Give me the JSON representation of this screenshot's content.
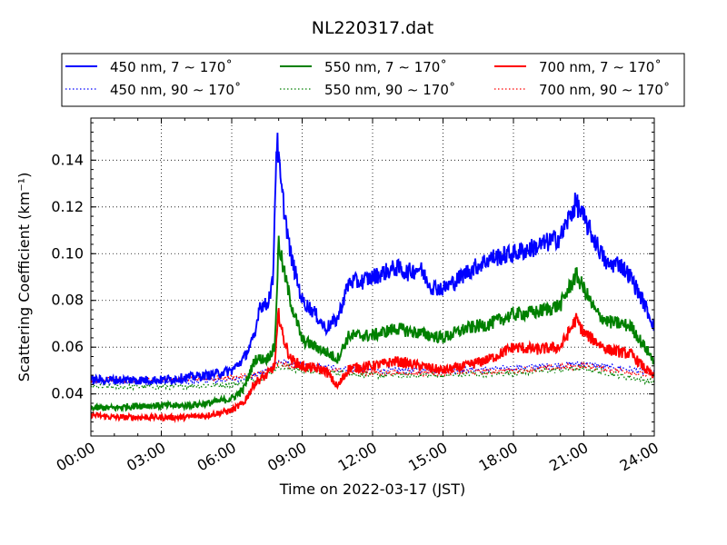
{
  "chart_data": {
    "type": "line",
    "title": "NL220317.dat",
    "xlabel": "Time on 2022-03-17 (JST)",
    "ylabel": "Scattering Coefficient (km⁻¹)",
    "xlim": [
      "00:00",
      "24:00"
    ],
    "ylim": [
      0.022,
      0.158
    ],
    "x_ticks": [
      "00:00",
      "03:00",
      "06:00",
      "09:00",
      "12:00",
      "15:00",
      "18:00",
      "21:00",
      "24:00"
    ],
    "y_ticks": [
      "0.04",
      "0.06",
      "0.08",
      "0.10",
      "0.12",
      "0.14"
    ],
    "grid": true,
    "legend_position": "top",
    "series": [
      {
        "name": "450 nm, 7 ∼ 170˚",
        "color": "#0000ff",
        "style": "solid",
        "x": [
          "00:00",
          "01:00",
          "02:00",
          "03:00",
          "04:00",
          "05:00",
          "06:00",
          "06:30",
          "07:00",
          "07:10",
          "07:30",
          "07:45",
          "07:55",
          "08:05",
          "08:30",
          "09:00",
          "09:30",
          "10:00",
          "10:30",
          "11:00",
          "11:30",
          "12:00",
          "13:00",
          "13:30",
          "14:00",
          "14:30",
          "15:00",
          "15:30",
          "16:00",
          "16:30",
          "17:00",
          "18:00",
          "19:00",
          "20:00",
          "20:40",
          "21:00",
          "21:30",
          "22:00",
          "22:30",
          "23:00",
          "23:30",
          "24:00"
        ],
        "values": [
          0.046,
          0.046,
          0.046,
          0.046,
          0.047,
          0.048,
          0.05,
          0.055,
          0.065,
          0.078,
          0.078,
          0.088,
          0.15,
          0.13,
          0.1,
          0.08,
          0.075,
          0.068,
          0.072,
          0.088,
          0.088,
          0.09,
          0.094,
          0.092,
          0.094,
          0.086,
          0.085,
          0.088,
          0.092,
          0.095,
          0.098,
          0.1,
          0.103,
          0.107,
          0.122,
          0.115,
          0.105,
          0.095,
          0.096,
          0.09,
          0.08,
          0.069
        ]
      },
      {
        "name": "450 nm, 90 ∼ 170˚",
        "color": "#0000ff",
        "style": "dotted",
        "x": [
          "00:00",
          "03:00",
          "06:00",
          "07:00",
          "07:30",
          "08:00",
          "09:00",
          "12:00",
          "15:00",
          "18:00",
          "21:00",
          "24:00"
        ],
        "values": [
          0.045,
          0.045,
          0.046,
          0.048,
          0.05,
          0.054,
          0.052,
          0.05,
          0.05,
          0.051,
          0.053,
          0.049
        ]
      },
      {
        "name": "550 nm, 7 ∼ 170˚",
        "color": "#008000",
        "style": "solid",
        "x": [
          "00:00",
          "01:00",
          "02:00",
          "03:00",
          "04:00",
          "05:00",
          "06:00",
          "06:30",
          "07:00",
          "07:30",
          "07:50",
          "08:00",
          "08:10",
          "08:30",
          "09:00",
          "10:00",
          "10:30",
          "11:00",
          "12:00",
          "13:00",
          "14:00",
          "15:00",
          "16:00",
          "17:00",
          "18:00",
          "19:00",
          "20:00",
          "20:40",
          "21:00",
          "21:30",
          "22:00",
          "23:00",
          "24:00"
        ],
        "values": [
          0.034,
          0.034,
          0.035,
          0.035,
          0.035,
          0.036,
          0.038,
          0.042,
          0.055,
          0.055,
          0.06,
          0.105,
          0.095,
          0.08,
          0.063,
          0.058,
          0.055,
          0.065,
          0.065,
          0.068,
          0.066,
          0.064,
          0.068,
          0.07,
          0.074,
          0.075,
          0.078,
          0.091,
          0.085,
          0.075,
          0.071,
          0.069,
          0.054
        ]
      },
      {
        "name": "550 nm, 90 ∼ 170˚",
        "color": "#008000",
        "style": "dotted",
        "x": [
          "00:00",
          "03:00",
          "06:00",
          "07:00",
          "07:30",
          "08:00",
          "09:00",
          "12:00",
          "15:00",
          "18:00",
          "21:00",
          "24:00"
        ],
        "values": [
          0.043,
          0.043,
          0.044,
          0.046,
          0.048,
          0.052,
          0.05,
          0.048,
          0.048,
          0.049,
          0.051,
          0.045
        ]
      },
      {
        "name": "700 nm, 7 ∼ 170˚",
        "color": "#ff0000",
        "style": "solid",
        "x": [
          "00:00",
          "01:00",
          "02:00",
          "03:00",
          "04:00",
          "05:00",
          "06:00",
          "06:30",
          "07:00",
          "07:30",
          "07:50",
          "08:00",
          "08:10",
          "08:30",
          "09:00",
          "10:00",
          "10:30",
          "11:00",
          "12:00",
          "13:00",
          "14:00",
          "15:00",
          "16:00",
          "17:00",
          "18:00",
          "19:00",
          "20:00",
          "20:40",
          "21:00",
          "22:00",
          "23:00",
          "24:00"
        ],
        "values": [
          0.031,
          0.03,
          0.03,
          0.03,
          0.03,
          0.031,
          0.033,
          0.036,
          0.045,
          0.048,
          0.052,
          0.075,
          0.065,
          0.055,
          0.052,
          0.05,
          0.043,
          0.051,
          0.052,
          0.054,
          0.052,
          0.05,
          0.052,
          0.055,
          0.06,
          0.059,
          0.06,
          0.072,
          0.066,
          0.059,
          0.057,
          0.047
        ]
      },
      {
        "name": "700 nm, 90 ∼ 170˚",
        "color": "#ff0000",
        "style": "dotted",
        "x": [
          "00:00",
          "03:00",
          "06:00",
          "07:00",
          "07:30",
          "08:00",
          "09:00",
          "12:00",
          "15:00",
          "18:00",
          "21:00",
          "24:00"
        ],
        "values": [
          0.046,
          0.046,
          0.047,
          0.048,
          0.05,
          0.053,
          0.051,
          0.049,
          0.049,
          0.05,
          0.052,
          0.048
        ]
      }
    ]
  }
}
